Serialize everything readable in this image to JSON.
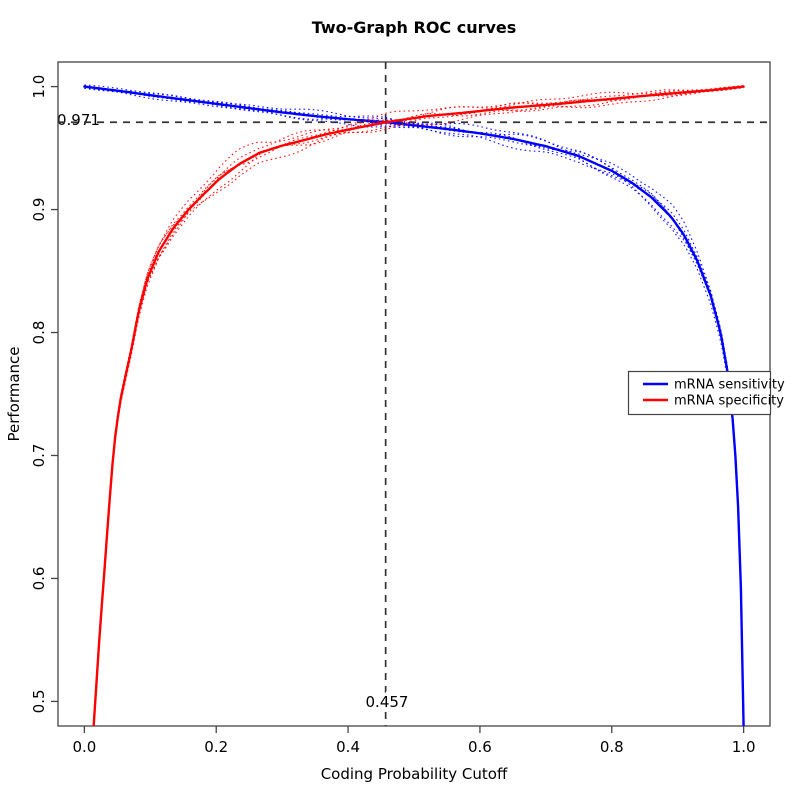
{
  "title": "Two-Graph ROC curves",
  "colors": {
    "background": "#ffffff",
    "axis": "#444444",
    "reference_dash": "#333333",
    "text": "#000000",
    "sensitivity": "#0000ff",
    "specificity": "#ff0000"
  },
  "annotations": {
    "hline": {
      "value": 0.971,
      "label": "0.971"
    },
    "vline": {
      "value": 0.457,
      "label": "0.457"
    }
  },
  "legend": {
    "items": [
      {
        "label": "mRNA sensitivity",
        "color": "#0000ff"
      },
      {
        "label": "mRNA specificity",
        "color": "#ff0000"
      }
    ]
  },
  "chart_data": {
    "type": "line",
    "title": "Two-Graph ROC curves",
    "xlabel": "Coding Probability Cutoff",
    "ylabel": "Performance",
    "xlim": [
      0,
      1
    ],
    "ylim": [
      0.5,
      1.0
    ],
    "axis_expansion": 0.04,
    "grid": false,
    "legend_position": "right-middle",
    "x_ticks": [
      0.0,
      0.2,
      0.4,
      0.6,
      0.8,
      1.0
    ],
    "x_tick_labels": [
      "0.0",
      "0.2",
      "0.4",
      "0.6",
      "0.8",
      "1.0"
    ],
    "y_ticks": [
      0.5,
      0.6,
      0.7,
      0.8,
      0.9,
      1.0
    ],
    "y_tick_labels": [
      "0.5",
      "0.6",
      "0.7",
      "0.8",
      "0.9",
      "1.0"
    ],
    "intersection": {
      "x": 0.457,
      "y": 0.971
    },
    "series": [
      {
        "name": "mRNA sensitivity",
        "color": "#0000ff",
        "line_style": "solid",
        "band_style": "dotted-replicates",
        "points": [
          [
            0.0,
            1.0
          ],
          [
            0.03,
            0.998
          ],
          [
            0.06,
            0.996
          ],
          [
            0.1,
            0.993
          ],
          [
            0.15,
            0.9895
          ],
          [
            0.2,
            0.986
          ],
          [
            0.25,
            0.9825
          ],
          [
            0.3,
            0.979
          ],
          [
            0.35,
            0.976
          ],
          [
            0.4,
            0.9735
          ],
          [
            0.457,
            0.971
          ],
          [
            0.5,
            0.9685
          ],
          [
            0.55,
            0.9655
          ],
          [
            0.6,
            0.962
          ],
          [
            0.65,
            0.9575
          ],
          [
            0.7,
            0.9515
          ],
          [
            0.75,
            0.9435
          ],
          [
            0.8,
            0.9315
          ],
          [
            0.83,
            0.922
          ],
          [
            0.86,
            0.91
          ],
          [
            0.89,
            0.894
          ],
          [
            0.91,
            0.879
          ],
          [
            0.93,
            0.858
          ],
          [
            0.95,
            0.83
          ],
          [
            0.965,
            0.8
          ],
          [
            0.975,
            0.77
          ],
          [
            0.985,
            0.722
          ],
          [
            0.991,
            0.668
          ],
          [
            0.995,
            0.61
          ],
          [
            0.998,
            0.545
          ],
          [
            1.0,
            0.4795
          ]
        ],
        "band_halfwidth": [
          [
            0.0,
            0.0015
          ],
          [
            0.1,
            0.002
          ],
          [
            0.2,
            0.0028
          ],
          [
            0.3,
            0.0035
          ],
          [
            0.4,
            0.004
          ],
          [
            0.5,
            0.0045
          ],
          [
            0.6,
            0.005
          ],
          [
            0.7,
            0.006
          ],
          [
            0.78,
            0.007
          ],
          [
            0.85,
            0.008
          ],
          [
            0.9,
            0.0085
          ],
          [
            0.94,
            0.007
          ],
          [
            0.97,
            0.005
          ],
          [
            0.99,
            0.003
          ],
          [
            1.0,
            0.0015
          ]
        ]
      },
      {
        "name": "mRNA specificity",
        "color": "#ff0000",
        "line_style": "solid",
        "band_style": "dotted-replicates",
        "points": [
          [
            0.014,
            0.4795
          ],
          [
            0.018,
            0.512
          ],
          [
            0.022,
            0.545
          ],
          [
            0.027,
            0.582
          ],
          [
            0.032,
            0.617
          ],
          [
            0.037,
            0.655
          ],
          [
            0.042,
            0.69
          ],
          [
            0.048,
            0.722
          ],
          [
            0.055,
            0.746
          ],
          [
            0.063,
            0.766
          ],
          [
            0.072,
            0.788
          ],
          [
            0.082,
            0.816
          ],
          [
            0.095,
            0.843
          ],
          [
            0.113,
            0.866
          ],
          [
            0.135,
            0.885
          ],
          [
            0.158,
            0.9
          ],
          [
            0.18,
            0.912
          ],
          [
            0.205,
            0.925
          ],
          [
            0.235,
            0.937
          ],
          [
            0.265,
            0.946
          ],
          [
            0.3,
            0.952
          ],
          [
            0.33,
            0.956
          ],
          [
            0.365,
            0.961
          ],
          [
            0.4,
            0.965
          ],
          [
            0.457,
            0.971
          ],
          [
            0.52,
            0.976
          ],
          [
            0.58,
            0.979
          ],
          [
            0.65,
            0.983
          ],
          [
            0.72,
            0.986
          ],
          [
            0.8,
            0.99
          ],
          [
            0.88,
            0.994
          ],
          [
            0.95,
            0.997
          ],
          [
            1.0,
            1.0
          ]
        ],
        "band_halfwidth": [
          [
            0.014,
            0.0015
          ],
          [
            0.03,
            0.004
          ],
          [
            0.06,
            0.006
          ],
          [
            0.1,
            0.0075
          ],
          [
            0.15,
            0.009
          ],
          [
            0.22,
            0.0095
          ],
          [
            0.3,
            0.008
          ],
          [
            0.4,
            0.0065
          ],
          [
            0.457,
            0.006
          ],
          [
            0.55,
            0.0055
          ],
          [
            0.7,
            0.005
          ],
          [
            0.85,
            0.004
          ],
          [
            0.95,
            0.002
          ],
          [
            1.0,
            0.0008
          ]
        ]
      }
    ]
  }
}
